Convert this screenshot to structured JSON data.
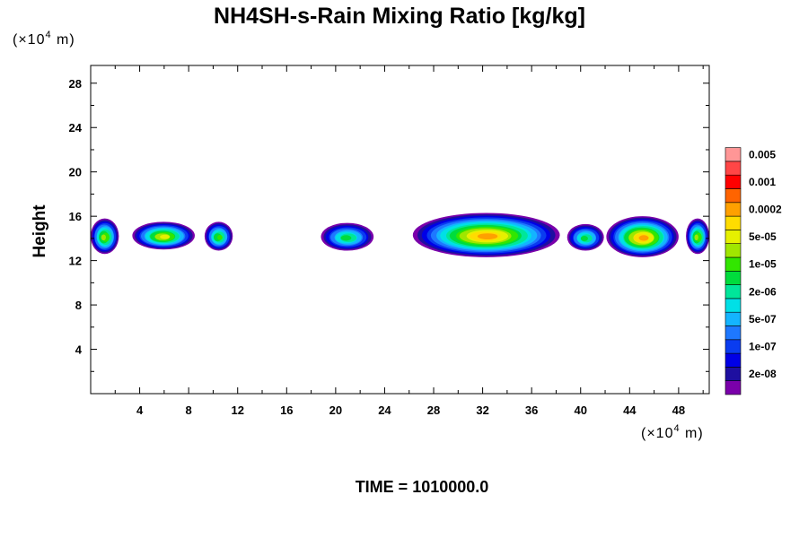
{
  "chart_data": {
    "type": "heatmap",
    "title": "NH4SH-s-Rain Mixing Ratio [kg/kg]",
    "ylabel": "Height",
    "x_unit_label": "(×10",
    "x_unit_exp": "4",
    "x_unit_tail": " m)",
    "y_unit_label": "(×10",
    "y_unit_exp": "4",
    "y_unit_tail": " m)",
    "xlim": [
      0,
      50.5
    ],
    "ylim": [
      0,
      29.6
    ],
    "x_ticks": [
      4,
      8,
      12,
      16,
      20,
      24,
      28,
      32,
      36,
      40,
      44,
      48
    ],
    "y_ticks": [
      4,
      8,
      12,
      16,
      20,
      24,
      28
    ],
    "time_label": "TIME = 1010000.0",
    "colorbar": {
      "colors": [
        "#7a00aa",
        "#1e0fa0",
        "#0000e6",
        "#0a3cf0",
        "#1e78ff",
        "#14b4ff",
        "#00e0e6",
        "#00e69a",
        "#00dc3c",
        "#32e600",
        "#a0e600",
        "#e6f000",
        "#ffdc00",
        "#ffa000",
        "#ff6400",
        "#ff0000",
        "#ff4646",
        "#ff9696"
      ],
      "labels": [
        {
          "text": "2e-08",
          "level": 1
        },
        {
          "text": "1e-07",
          "level": 3
        },
        {
          "text": "5e-07",
          "level": 5
        },
        {
          "text": "2e-06",
          "level": 7
        },
        {
          "text": "1e-05",
          "level": 9
        },
        {
          "text": "5e-05",
          "level": 11
        },
        {
          "text": "0.0002",
          "level": 13
        },
        {
          "text": "0.001",
          "level": 15
        },
        {
          "text": "0.005",
          "level": 17
        }
      ]
    },
    "blobs": [
      {
        "x0": 0,
        "x1": 2.3,
        "y0": 12.6,
        "y1": 15.8,
        "peak": 10
      },
      {
        "x0": 3.4,
        "x1": 8.5,
        "y0": 13.0,
        "y1": 15.5,
        "peak": 11
      },
      {
        "x0": 9.3,
        "x1": 11.6,
        "y0": 12.9,
        "y1": 15.5,
        "peak": 9
      },
      {
        "x0": 18.8,
        "x1": 23.1,
        "y0": 12.9,
        "y1": 15.4,
        "peak": 8
      },
      {
        "x0": 26.3,
        "x1": 38.3,
        "y0": 12.3,
        "y1": 16.3,
        "peak": 13
      },
      {
        "x0": 38.9,
        "x1": 41.9,
        "y0": 12.9,
        "y1": 15.3,
        "peak": 8
      },
      {
        "x0": 42.1,
        "x1": 48.0,
        "y0": 12.3,
        "y1": 16.0,
        "peak": 13
      },
      {
        "x0": 48.6,
        "x1": 50.5,
        "y0": 12.6,
        "y1": 15.8,
        "peak": 10
      }
    ]
  }
}
